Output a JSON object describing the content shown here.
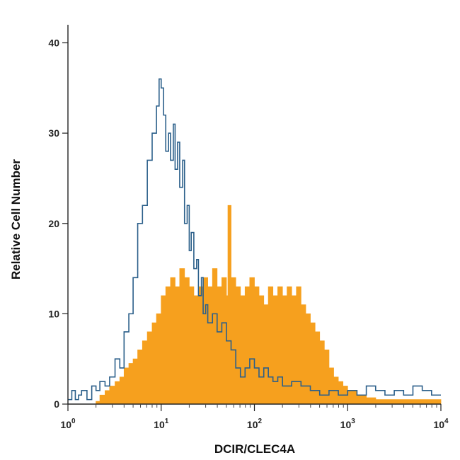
{
  "chart_data": {
    "type": "histogram",
    "xlabel": "DCIR/CLEC4A",
    "ylabel": "Relative Cell Number",
    "xscale": "log",
    "xlim": [
      1,
      10000
    ],
    "ylim": [
      0,
      42
    ],
    "yticks": [
      0,
      10,
      20,
      30,
      40
    ],
    "xticks": [
      {
        "value": 1,
        "base": "10",
        "exp": "0"
      },
      {
        "value": 10,
        "base": "10",
        "exp": "1"
      },
      {
        "value": 100,
        "base": "10",
        "exp": "2"
      },
      {
        "value": 1000,
        "base": "10",
        "exp": "3"
      },
      {
        "value": 10000,
        "base": "10",
        "exp": "4"
      }
    ],
    "grid": false,
    "legend": "none",
    "series": [
      {
        "style": "outline",
        "color": "#2b5f8a",
        "x": [
          1.0,
          1.1,
          1.2,
          1.3,
          1.4,
          1.6,
          1.8,
          2.0,
          2.2,
          2.5,
          2.8,
          3.2,
          3.6,
          4.0,
          4.5,
          5.0,
          5.6,
          6.3,
          7.1,
          8.0,
          8.9,
          9.5,
          10.0,
          10.6,
          11.2,
          12.0,
          12.6,
          13.5,
          14.1,
          15.0,
          15.8,
          17.0,
          17.8,
          19.0,
          20.0,
          21.0,
          22.4,
          24.0,
          25.1,
          27.0,
          28.2,
          30.0,
          31.6,
          35.5,
          39.8,
          44.7,
          50.1,
          56.2,
          63.1,
          70.8,
          79.4,
          89.1,
          100,
          112,
          126,
          141,
          158,
          178,
          200,
          251,
          316,
          398,
          501,
          631,
          794,
          1000,
          1259,
          1585,
          1995,
          2512,
          3162,
          3981,
          5012,
          6310,
          7943,
          10000
        ],
        "y": [
          0.5,
          1.5,
          0.5,
          1,
          1.5,
          0.5,
          2,
          1.5,
          2.5,
          2,
          3,
          5,
          4,
          8,
          10,
          14,
          20,
          22,
          27,
          30,
          33,
          36,
          35,
          32,
          28,
          30,
          27,
          31,
          26,
          29,
          24,
          27,
          20,
          22,
          17,
          19,
          15,
          16,
          12,
          14,
          10,
          11,
          9,
          10,
          8,
          9,
          7,
          6,
          4,
          3,
          4,
          5,
          4,
          3,
          4,
          3,
          2.5,
          3,
          2,
          2.5,
          2,
          1.5,
          1,
          1.5,
          1,
          1.5,
          1,
          2,
          1.5,
          1,
          1.5,
          1,
          2,
          1.5,
          1,
          1
        ]
      },
      {
        "style": "filled",
        "color": "#f6a01e",
        "x": [
          1.0,
          1.5,
          2.0,
          2.2,
          2.5,
          2.8,
          3.2,
          3.6,
          4.0,
          4.5,
          5.0,
          5.6,
          6.3,
          7.1,
          8.0,
          8.9,
          10.0,
          11.2,
          12.6,
          14.1,
          15.8,
          17.8,
          20.0,
          22.4,
          25.1,
          28.2,
          31.6,
          35.5,
          39.8,
          44.7,
          50.1,
          52.0,
          56.2,
          63.1,
          70.8,
          79.4,
          89.1,
          100,
          112,
          126,
          141,
          158,
          178,
          200,
          224,
          251,
          282,
          316,
          355,
          398,
          447,
          501,
          562,
          631,
          708,
          794,
          891,
          1000,
          1259,
          1585,
          2000,
          3162,
          5012,
          7943,
          10000
        ],
        "y": [
          0,
          0,
          0.3,
          1,
          1.5,
          2,
          2.5,
          3,
          4,
          4.5,
          5,
          6,
          7,
          8,
          9,
          10,
          12,
          13,
          14,
          13,
          15,
          14,
          13,
          12,
          13,
          14,
          13,
          15,
          13,
          14,
          12,
          22,
          14,
          13,
          12,
          13,
          14,
          13,
          12,
          11,
          13,
          12,
          13,
          12,
          13,
          12,
          13,
          11,
          10,
          9,
          8,
          7,
          6,
          4,
          3,
          2.5,
          2,
          1.5,
          1,
          0.7,
          0.5,
          0.5,
          0.5,
          0.5,
          0
        ]
      }
    ]
  }
}
